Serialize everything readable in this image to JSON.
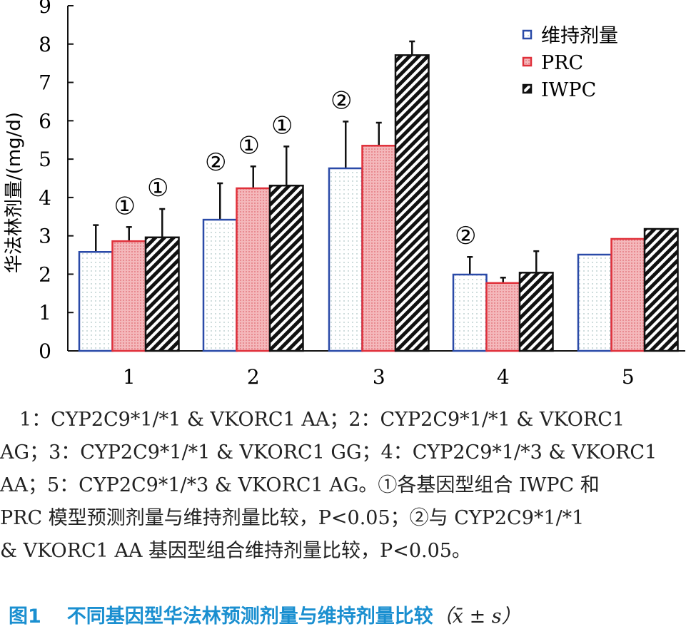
{
  "chart_data": {
    "type": "bar",
    "ylabel": "华法林剂量/(mg/d)",
    "xlabel": "",
    "ylim": [
      0,
      9
    ],
    "yticks": [
      "0",
      "1",
      "2",
      "3",
      "4",
      "5",
      "6",
      "7",
      "8",
      "9"
    ],
    "categories": [
      "1",
      "2",
      "3",
      "4",
      "5"
    ],
    "legend_position": "top-right",
    "series": [
      {
        "name": "维持剂量",
        "color": "#2a4aa8",
        "values": [
          2.58,
          3.42,
          4.76,
          1.99,
          2.51
        ],
        "errors": [
          0.7,
          0.95,
          1.22,
          0.46,
          0.0
        ]
      },
      {
        "name": "PRC",
        "color": "#e0303a",
        "values": [
          2.86,
          4.24,
          5.35,
          1.77,
          2.92
        ],
        "errors": [
          0.37,
          0.57,
          0.6,
          0.14,
          0.0
        ]
      },
      {
        "name": "IWPC",
        "color": "#111111",
        "values": [
          2.96,
          4.31,
          7.71,
          2.04,
          3.18
        ],
        "errors": [
          0.74,
          1.02,
          0.36,
          0.56,
          0.0
        ]
      }
    ],
    "annotations": [
      {
        "category": 0,
        "series": 1,
        "text": "①"
      },
      {
        "category": 0,
        "series": 2,
        "text": "①"
      },
      {
        "category": 1,
        "series": 0,
        "text": "②"
      },
      {
        "category": 1,
        "series": 1,
        "text": "①"
      },
      {
        "category": 1,
        "series": 2,
        "text": "①"
      },
      {
        "category": 2,
        "series": 0,
        "text": "②"
      },
      {
        "category": 3,
        "series": 0,
        "text": "②"
      }
    ]
  },
  "caption": {
    "lines": [
      "　1：CYP2C9*1/*1 & VKORC1 AA；2：CYP2C9*1/*1 & VKORC1",
      "AG；3：CYP2C9*1/*1 & VKORC1 GG；4：CYP2C9*1/*3 & VKORC1",
      "AA；5：CYP2C9*1/*3 & VKORC1 AG。①各基因型组合 IWPC 和",
      "PRC 模型预测剂量与维持剂量比较，P<0.05；②与 CYP2C9*1/*1",
      "& VKORC1 AA 基因型组合维持剂量比较，P<0.05。"
    ]
  },
  "figure": {
    "number": "图1",
    "title": "不同基因型华法林预测剂量与维持剂量比较",
    "stat": "（x̄ ± s）"
  }
}
